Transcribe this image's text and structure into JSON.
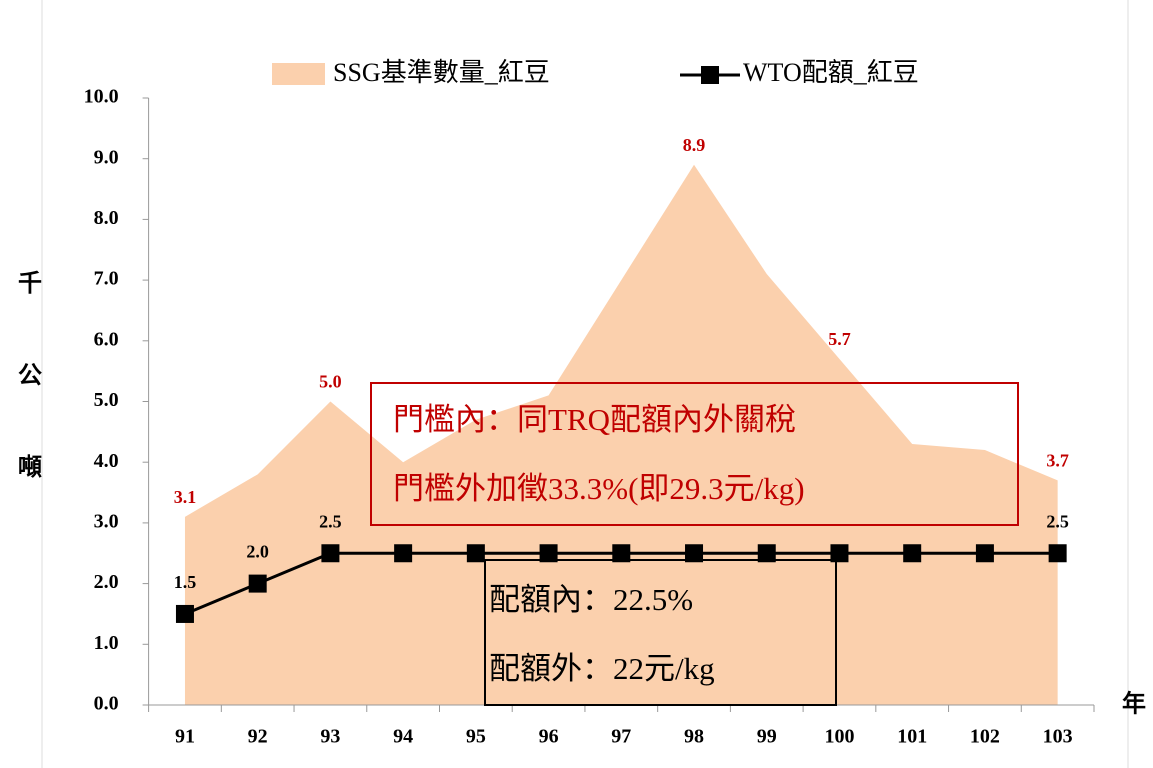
{
  "chart_data": {
    "type": "combo",
    "categories": [
      "91",
      "92",
      "93",
      "94",
      "95",
      "96",
      "97",
      "98",
      "99",
      "100",
      "101",
      "102",
      "103"
    ],
    "series": [
      {
        "name": "SSG基準數量_紅豆",
        "type": "area",
        "color": "#fbd0ad",
        "label_color": "#c00000",
        "values": [
          3.1,
          3.8,
          5.0,
          4.0,
          4.7,
          5.1,
          7.0,
          8.9,
          7.1,
          5.7,
          4.3,
          4.2,
          3.7
        ],
        "value_labels": [
          "3.1",
          null,
          "5.0",
          null,
          null,
          null,
          null,
          "8.9",
          null,
          "5.7",
          null,
          null,
          "3.7"
        ]
      },
      {
        "name": "WTO配額_紅豆",
        "type": "line",
        "color": "#000000",
        "label_color": "#000000",
        "values": [
          1.5,
          2.0,
          2.5,
          2.5,
          2.5,
          2.5,
          2.5,
          2.5,
          2.5,
          2.5,
          2.5,
          2.5,
          2.5
        ],
        "value_labels": [
          "1.5",
          "2.0",
          "2.5",
          null,
          null,
          null,
          null,
          null,
          null,
          null,
          null,
          null,
          "2.5"
        ]
      }
    ],
    "y_label": "千公噸",
    "x_label": "年",
    "ylim": [
      0,
      10
    ],
    "yticks": [
      {
        "value": 0,
        "label": "0.0"
      },
      {
        "value": 1,
        "label": "1.0"
      },
      {
        "value": 2,
        "label": "2.0"
      },
      {
        "value": 3,
        "label": "3.0"
      },
      {
        "value": 4,
        "label": "4.0"
      },
      {
        "value": 5,
        "label": "5.0"
      },
      {
        "value": 6,
        "label": "6.0"
      },
      {
        "value": 7,
        "label": "7.0"
      },
      {
        "value": 8,
        "label": "8.0"
      },
      {
        "value": 9,
        "label": "9.0"
      },
      {
        "value": 10,
        "label": "10.0"
      }
    ],
    "annotations": [
      {
        "lines": [
          "門檻內：同TRQ配額內外關稅",
          "門檻外加徵33.3%(即29.3元/kg)"
        ],
        "color": "#c00000"
      },
      {
        "lines": [
          "配額內：22.5%",
          "配額外：22元/kg"
        ],
        "color": "#000000"
      }
    ]
  }
}
